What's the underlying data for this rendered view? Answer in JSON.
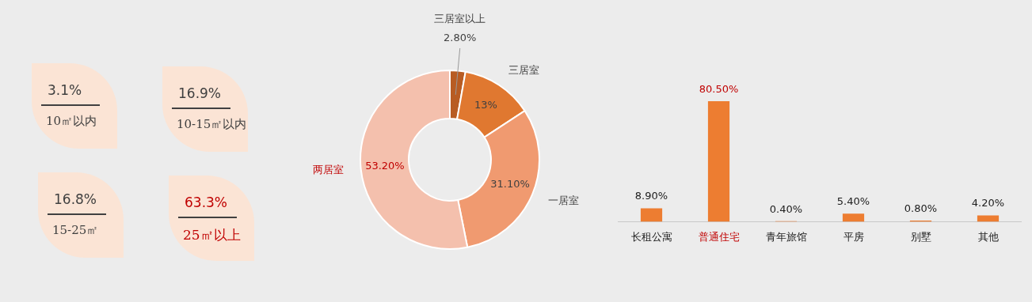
{
  "chart_data": [
    {
      "type": "other",
      "categories": [
        "10㎡以内",
        "10-15㎡以内",
        "15-25㎡",
        "25㎡以上"
      ],
      "values": [
        3.1,
        16.9,
        16.8,
        63.3
      ],
      "value_labels": [
        "3.1%",
        "16.9%",
        "16.8%",
        "63.3%"
      ],
      "color": "#fbe4d5"
    },
    {
      "type": "donut",
      "categories": [
        "三居室以上",
        "三居室",
        "一居室",
        "两居室"
      ],
      "values": [
        2.8,
        13,
        31.1,
        53.2
      ],
      "colors": [
        "#b85c23",
        "#e07830",
        "#f09a70",
        "#f4c0ad"
      ],
      "value_labels": [
        "2.80%",
        "13%",
        "31.10%",
        "53.20%"
      ]
    },
    {
      "type": "bar",
      "categories": [
        "长租公寓",
        "普通住宅",
        "青年旅馆",
        "平房",
        "别墅",
        "其他"
      ],
      "values": [
        8.9,
        80.5,
        0.4,
        5.4,
        0.8,
        4.2
      ],
      "color": "#ed7d31",
      "value_labels": [
        "8.90%",
        "80.50%",
        "0.40%",
        "5.40%",
        "0.80%",
        "4.20%"
      ]
    }
  ]
}
